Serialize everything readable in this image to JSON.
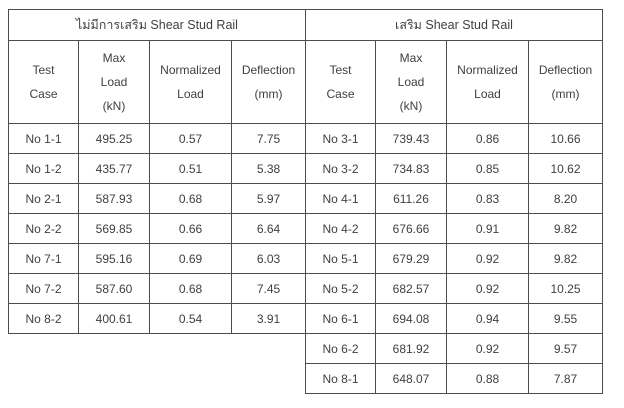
{
  "page": {
    "background": "#ffffff",
    "border_color": "#4c4c4c",
    "text_color": "#3f3f3f"
  },
  "tables": [
    {
      "id": "no-shear-stud-rail",
      "title": "ไม่มีการเสริม Shear Stud Rail",
      "headers": [
        "Test\nCase",
        "Max\nLoad\n(kN)",
        "Normalized\nLoad",
        "Deflection\n(mm)"
      ],
      "rows": [
        [
          "No 1-1",
          "495.25",
          "0.57",
          "7.75"
        ],
        [
          "No 1-2",
          "435.77",
          "0.51",
          "5.38"
        ],
        [
          "No 2-1",
          "587.93",
          "0.68",
          "5.97"
        ],
        [
          "No 2-2",
          "569.85",
          "0.66",
          "6.64"
        ],
        [
          "No 7-1",
          "595.16",
          "0.69",
          "6.03"
        ],
        [
          "No 7-2",
          "587.60",
          "0.68",
          "7.45"
        ],
        [
          "No 8-2",
          "400.61",
          "0.54",
          "3.91"
        ]
      ]
    },
    {
      "id": "shear-stud-rail",
      "title": "เสริม Shear Stud Rail",
      "headers": [
        "Test\nCase",
        "Max\nLoad\n(kN)",
        "Normalized\nLoad",
        "Deflection\n(mm)"
      ],
      "rows": [
        [
          "No 3-1",
          "739.43",
          "0.86",
          "10.66"
        ],
        [
          "No 3-2",
          "734.83",
          "0.85",
          "10.62"
        ],
        [
          "No 4-1",
          "611.26",
          "0.83",
          "8.20"
        ],
        [
          "No 4-2",
          "676.66",
          "0.91",
          "9.82"
        ],
        [
          "No 5-1",
          "679.29",
          "0.92",
          "9.82"
        ],
        [
          "No 5-2",
          "682.57",
          "0.92",
          "10.25"
        ],
        [
          "No 6-1",
          "694.08",
          "0.94",
          "9.55"
        ],
        [
          "No 6-2",
          "681.92",
          "0.92",
          "9.57"
        ],
        [
          "No 8-1",
          "648.07",
          "0.88",
          "7.87"
        ]
      ]
    }
  ]
}
